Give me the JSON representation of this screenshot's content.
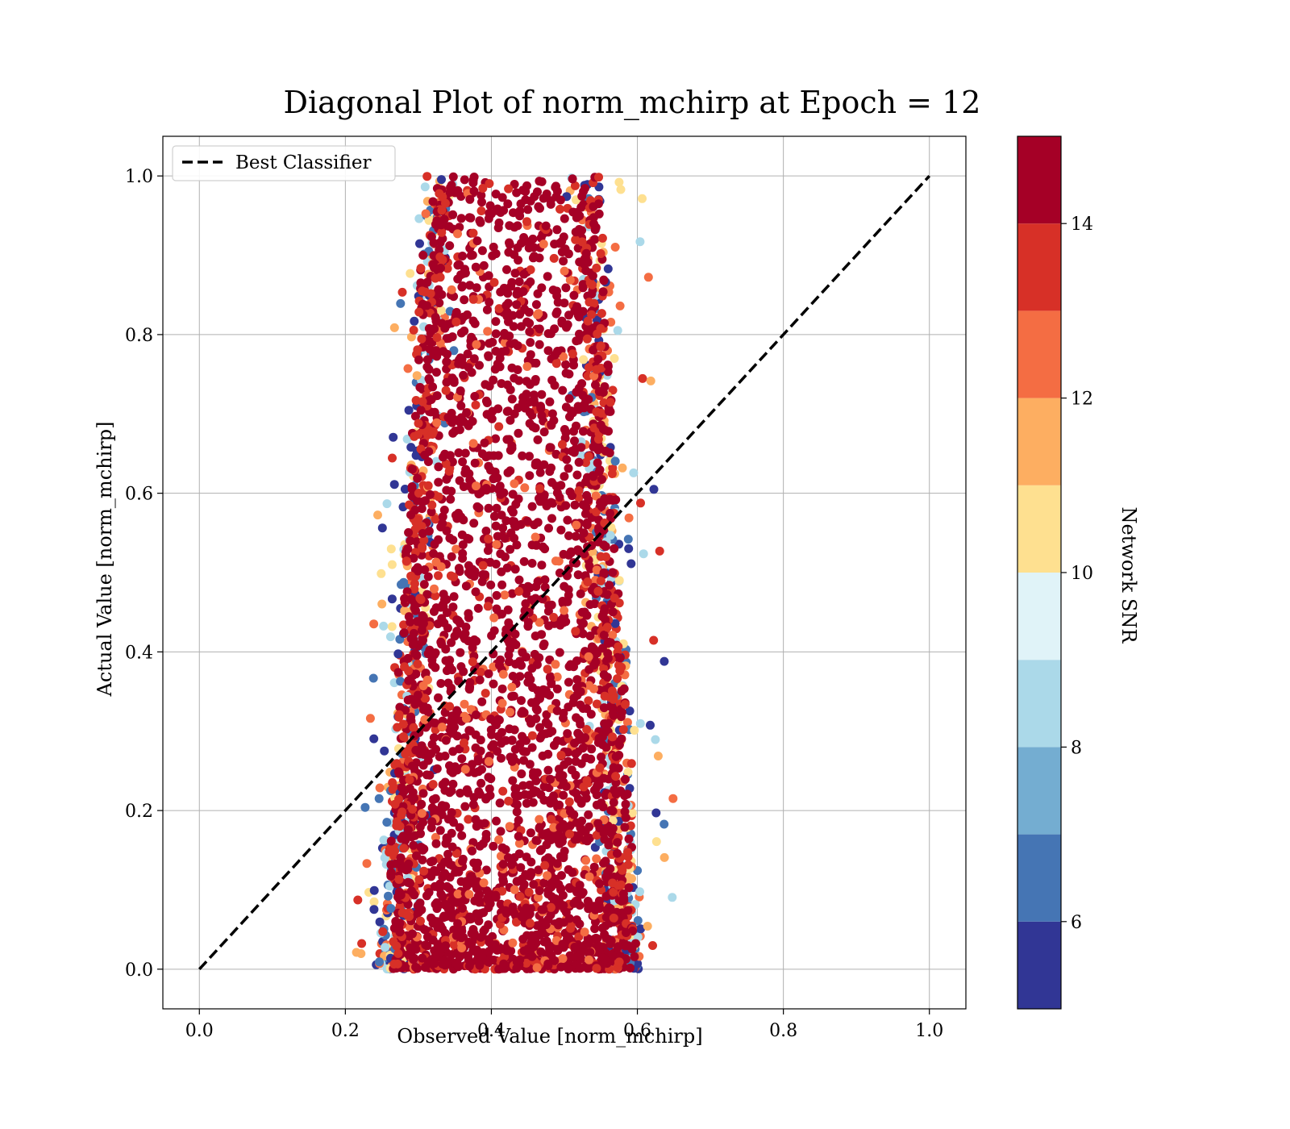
{
  "chart_data": {
    "type": "scatter",
    "title": "Diagonal Plot of norm_mchirp at Epoch = 12",
    "xlabel": "Observed Value [norm_mchirp]",
    "ylabel": "Actual Value [norm_mchirp]",
    "xlim": [
      -0.05,
      1.05
    ],
    "ylim": [
      -0.05,
      1.05
    ],
    "xticks": [
      0.0,
      0.2,
      0.4,
      0.6,
      0.8,
      1.0
    ],
    "yticks": [
      0.0,
      0.2,
      0.4,
      0.6,
      0.8,
      1.0
    ],
    "xtick_labels": [
      "0.0",
      "0.2",
      "0.4",
      "0.6",
      "0.8",
      "1.0"
    ],
    "ytick_labels": [
      "0.0",
      "0.2",
      "0.4",
      "0.6",
      "0.8",
      "1.0"
    ],
    "grid": true,
    "legend": {
      "position": "upper-left",
      "entries": [
        {
          "label": "Best Classifier",
          "style": "dashed",
          "color": "#000000"
        }
      ]
    },
    "reference_line": {
      "x": [
        0.0,
        1.0
      ],
      "y": [
        0.0,
        1.0
      ],
      "style": "dashed",
      "color": "#000000"
    },
    "colorbar": {
      "label": "Network SNR",
      "min": 5,
      "max": 15,
      "ticks": [
        6,
        8,
        10,
        12,
        14
      ],
      "tick_labels": [
        "6",
        "8",
        "10",
        "12",
        "14"
      ],
      "colormap": "RdYlBu_r",
      "bands": [
        "#313695",
        "#4575b4",
        "#74add1",
        "#abd9e9",
        "#e0f3f8",
        "#fee090",
        "#fdae61",
        "#f46d43",
        "#d73027",
        "#a50026"
      ]
    },
    "scatter_summary": {
      "x_range_at_y0": [
        0.25,
        0.6
      ],
      "x_range_at_y1": [
        0.31,
        0.55
      ],
      "y_range": [
        0.0,
        1.0
      ],
      "dominant_color": "#a50026",
      "outlier_colors": [
        "#fdae61",
        "#f46d43",
        "#d73027",
        "#abd9e9",
        "#4575b4",
        "#313695",
        "#fee090"
      ]
    }
  }
}
